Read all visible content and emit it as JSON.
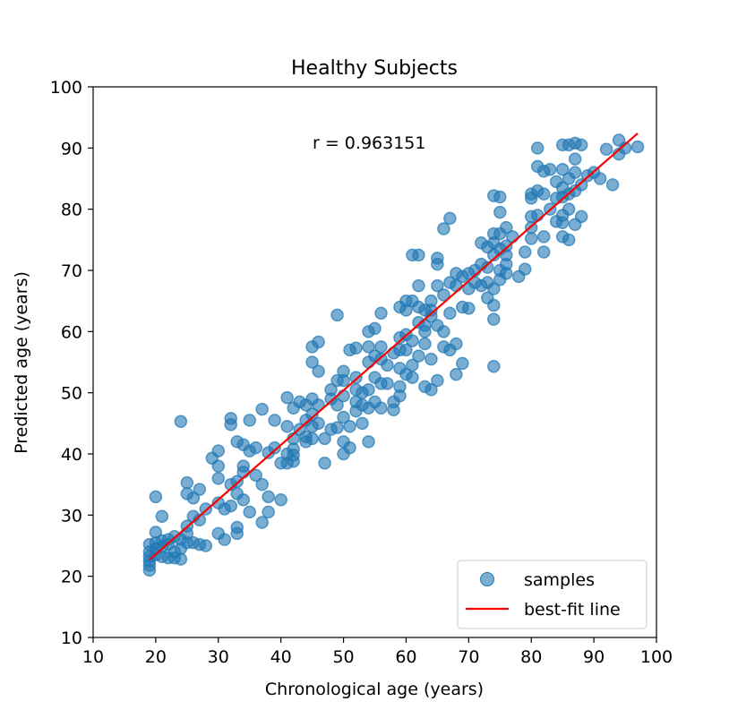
{
  "chart_data": {
    "type": "scatter",
    "title": "Healthy Subjects",
    "xlabel": "Chronological age (years)",
    "ylabel": "Predicted age (years)",
    "xlim": [
      10,
      100
    ],
    "ylim": [
      10,
      100
    ],
    "xticks": [
      "10",
      "20",
      "30",
      "40",
      "50",
      "60",
      "70",
      "80",
      "90",
      "100"
    ],
    "yticks": [
      "10",
      "20",
      "30",
      "40",
      "50",
      "60",
      "70",
      "80",
      "90",
      "100"
    ],
    "annotation": "r = 0.963151",
    "legend_position": "lower-right",
    "legend": {
      "samples": "samples",
      "fit": "best-fit line"
    },
    "colors": {
      "samples": "#1f77b4",
      "fit": "#ff0000"
    },
    "fit_line": {
      "x": [
        19,
        97
      ],
      "y": [
        22.7,
        92.4
      ]
    },
    "series": [
      {
        "name": "samples",
        "points": [
          [
            19,
            21
          ],
          [
            19,
            21.8
          ],
          [
            19,
            22.5
          ],
          [
            19,
            23.2
          ],
          [
            19,
            24
          ],
          [
            19,
            25.2
          ],
          [
            20,
            33
          ],
          [
            20,
            27.2
          ],
          [
            20,
            25.5
          ],
          [
            20,
            24.5
          ],
          [
            20,
            23.5
          ],
          [
            21,
            29.8
          ],
          [
            21,
            25.8
          ],
          [
            21,
            24.8
          ],
          [
            21,
            23.2
          ],
          [
            22,
            26
          ],
          [
            22,
            25.2
          ],
          [
            22,
            23
          ],
          [
            23,
            26.5
          ],
          [
            23,
            24
          ],
          [
            23,
            23
          ],
          [
            24,
            45.3
          ],
          [
            24,
            26
          ],
          [
            24,
            24.5
          ],
          [
            24,
            22.8
          ],
          [
            25,
            35.3
          ],
          [
            25,
            33.5
          ],
          [
            25,
            28.2
          ],
          [
            25,
            27
          ],
          [
            25,
            25.5
          ],
          [
            26,
            32.8
          ],
          [
            26,
            25.5
          ],
          [
            26,
            29.8
          ],
          [
            27,
            34.2
          ],
          [
            27,
            29.2
          ],
          [
            27,
            25.2
          ],
          [
            28,
            31
          ],
          [
            28,
            25
          ],
          [
            29,
            39.3
          ],
          [
            30,
            40.5
          ],
          [
            30,
            38
          ],
          [
            30,
            36
          ],
          [
            30,
            32
          ],
          [
            30,
            27
          ],
          [
            31,
            31
          ],
          [
            31,
            26
          ],
          [
            32,
            45.8
          ],
          [
            32,
            44.8
          ],
          [
            32,
            35
          ],
          [
            32,
            31.5
          ],
          [
            33,
            42
          ],
          [
            33,
            35.5
          ],
          [
            33,
            33.5
          ],
          [
            33,
            28
          ],
          [
            33,
            27
          ],
          [
            34,
            41.5
          ],
          [
            34,
            38
          ],
          [
            34,
            37
          ],
          [
            34,
            32.5
          ],
          [
            35,
            45.5
          ],
          [
            35,
            40.5
          ],
          [
            35,
            30.5
          ],
          [
            36,
            41
          ],
          [
            36,
            36.5
          ],
          [
            37,
            47.3
          ],
          [
            37,
            35
          ],
          [
            37,
            28.8
          ],
          [
            38,
            40.2
          ],
          [
            38,
            33
          ],
          [
            38,
            30.5
          ],
          [
            39,
            45.5
          ],
          [
            39,
            41
          ],
          [
            40,
            38.5
          ],
          [
            40,
            32.5
          ],
          [
            41,
            49.2
          ],
          [
            41,
            44.5
          ],
          [
            41,
            40
          ],
          [
            41,
            38.5
          ],
          [
            42,
            47.5
          ],
          [
            42,
            42.5
          ],
          [
            42,
            40.8
          ],
          [
            42,
            39.8
          ],
          [
            42,
            38.8
          ],
          [
            43,
            48.5
          ],
          [
            43,
            44
          ],
          [
            44,
            48
          ],
          [
            44,
            45.5
          ],
          [
            44,
            42.8
          ],
          [
            44,
            42
          ],
          [
            45,
            57.5
          ],
          [
            45,
            55
          ],
          [
            45,
            49
          ],
          [
            45,
            46.5
          ],
          [
            45,
            44.5
          ],
          [
            45,
            42.5
          ],
          [
            46,
            58.3
          ],
          [
            46,
            53.5
          ],
          [
            46,
            48
          ],
          [
            46,
            45
          ],
          [
            47,
            42.5
          ],
          [
            47,
            38.5
          ],
          [
            48,
            50.5
          ],
          [
            48,
            49
          ],
          [
            48,
            44
          ],
          [
            49,
            62.7
          ],
          [
            49,
            52
          ],
          [
            49,
            48
          ],
          [
            49,
            44.3
          ],
          [
            50,
            53.5
          ],
          [
            50,
            52
          ],
          [
            50,
            49.5
          ],
          [
            50,
            46
          ],
          [
            50,
            42
          ],
          [
            50,
            40
          ],
          [
            51,
            57
          ],
          [
            51,
            44.5
          ],
          [
            51,
            41
          ],
          [
            52,
            57.3
          ],
          [
            52,
            52.5
          ],
          [
            52,
            50.5
          ],
          [
            52,
            48.5
          ],
          [
            52,
            47
          ],
          [
            53,
            50
          ],
          [
            53,
            48
          ],
          [
            53,
            45
          ],
          [
            54,
            60
          ],
          [
            54,
            57.5
          ],
          [
            54,
            55
          ],
          [
            54,
            50.5
          ],
          [
            54,
            47.5
          ],
          [
            54,
            42
          ],
          [
            55,
            60.5
          ],
          [
            55,
            56
          ],
          [
            55,
            52.5
          ],
          [
            55,
            48.5
          ],
          [
            56,
            63
          ],
          [
            56,
            57.5
          ],
          [
            56,
            55.5
          ],
          [
            56,
            51.5
          ],
          [
            56,
            47.5
          ],
          [
            57,
            54.5
          ],
          [
            57,
            51.5
          ],
          [
            58,
            56.5
          ],
          [
            58,
            48.5
          ],
          [
            58,
            47.2
          ],
          [
            59,
            59
          ],
          [
            59,
            64
          ],
          [
            59,
            57
          ],
          [
            59,
            54
          ],
          [
            59,
            51
          ],
          [
            59,
            49.5
          ],
          [
            60,
            65
          ],
          [
            60,
            63.5
          ],
          [
            60,
            59.5
          ],
          [
            60,
            57
          ],
          [
            60,
            53
          ],
          [
            61,
            72.5
          ],
          [
            61,
            65
          ],
          [
            61,
            58.5
          ],
          [
            61,
            54.5
          ],
          [
            61,
            52.5
          ],
          [
            62,
            72.5
          ],
          [
            62,
            67.5
          ],
          [
            62,
            64
          ],
          [
            62,
            61.5
          ],
          [
            62,
            56
          ],
          [
            63,
            63.5
          ],
          [
            63,
            61
          ],
          [
            63,
            60
          ],
          [
            63,
            58
          ],
          [
            63,
            51
          ],
          [
            64,
            65
          ],
          [
            64,
            63.5
          ],
          [
            64,
            62.5
          ],
          [
            64,
            55.5
          ],
          [
            64,
            50.5
          ],
          [
            65,
            72
          ],
          [
            65,
            71
          ],
          [
            65,
            67.5
          ],
          [
            65,
            61
          ],
          [
            65,
            52
          ],
          [
            66,
            76.8
          ],
          [
            66,
            66
          ],
          [
            66,
            60
          ],
          [
            66,
            57.5
          ],
          [
            67,
            78.5
          ],
          [
            67,
            68
          ],
          [
            67,
            63
          ],
          [
            67,
            57
          ],
          [
            68,
            69.5
          ],
          [
            68,
            67.5
          ],
          [
            68,
            58
          ],
          [
            68,
            53
          ],
          [
            69,
            69
          ],
          [
            69,
            64
          ],
          [
            69,
            54.8
          ],
          [
            70,
            69.5
          ],
          [
            70,
            67
          ],
          [
            70,
            63.8
          ],
          [
            71,
            70
          ],
          [
            71,
            68
          ],
          [
            72,
            74.5
          ],
          [
            72,
            71
          ],
          [
            72,
            67.5
          ],
          [
            73,
            73.8
          ],
          [
            73,
            70.5
          ],
          [
            73,
            68
          ],
          [
            73,
            65.5
          ],
          [
            74,
            82.2
          ],
          [
            74,
            76
          ],
          [
            74,
            74.5
          ],
          [
            74,
            72.5
          ],
          [
            74,
            67
          ],
          [
            74,
            64.3
          ],
          [
            74,
            62
          ],
          [
            74,
            54.3
          ],
          [
            75,
            82
          ],
          [
            75,
            79.5
          ],
          [
            75,
            76
          ],
          [
            75,
            73.5
          ],
          [
            75,
            70
          ],
          [
            75,
            68.5
          ],
          [
            76,
            77
          ],
          [
            76,
            74
          ],
          [
            76,
            72.5
          ],
          [
            76,
            71
          ],
          [
            76,
            69.5
          ],
          [
            77,
            75.5
          ],
          [
            78,
            69
          ],
          [
            79,
            73
          ],
          [
            79,
            70.2
          ],
          [
            80,
            82.5
          ],
          [
            80,
            81.8
          ],
          [
            80,
            78.8
          ],
          [
            80,
            77
          ],
          [
            80,
            75.2
          ],
          [
            81,
            90
          ],
          [
            81,
            87
          ],
          [
            81,
            83
          ],
          [
            81,
            79
          ],
          [
            82,
            86.2
          ],
          [
            82,
            82.5
          ],
          [
            82,
            75.5
          ],
          [
            82,
            73
          ],
          [
            83,
            80
          ],
          [
            83,
            86.5
          ],
          [
            84,
            84.5
          ],
          [
            84,
            81.8
          ],
          [
            84,
            78
          ],
          [
            85,
            90.5
          ],
          [
            85,
            86.5
          ],
          [
            85,
            83.5
          ],
          [
            85,
            82
          ],
          [
            85,
            79
          ],
          [
            85,
            77.8
          ],
          [
            85,
            75.5
          ],
          [
            86,
            90.5
          ],
          [
            86,
            85
          ],
          [
            86,
            82.5
          ],
          [
            86,
            80
          ],
          [
            86,
            75
          ],
          [
            87,
            90.8
          ],
          [
            87,
            88.2
          ],
          [
            87,
            86
          ],
          [
            87,
            83
          ],
          [
            87,
            77.5
          ],
          [
            88,
            90.5
          ],
          [
            88,
            84
          ],
          [
            88,
            78.8
          ],
          [
            89,
            85.5
          ],
          [
            90,
            86
          ],
          [
            91,
            85
          ],
          [
            92,
            89.8
          ],
          [
            93,
            84
          ],
          [
            94,
            91.3
          ],
          [
            94,
            89
          ],
          [
            95,
            90
          ],
          [
            97,
            90.2
          ]
        ]
      }
    ]
  }
}
